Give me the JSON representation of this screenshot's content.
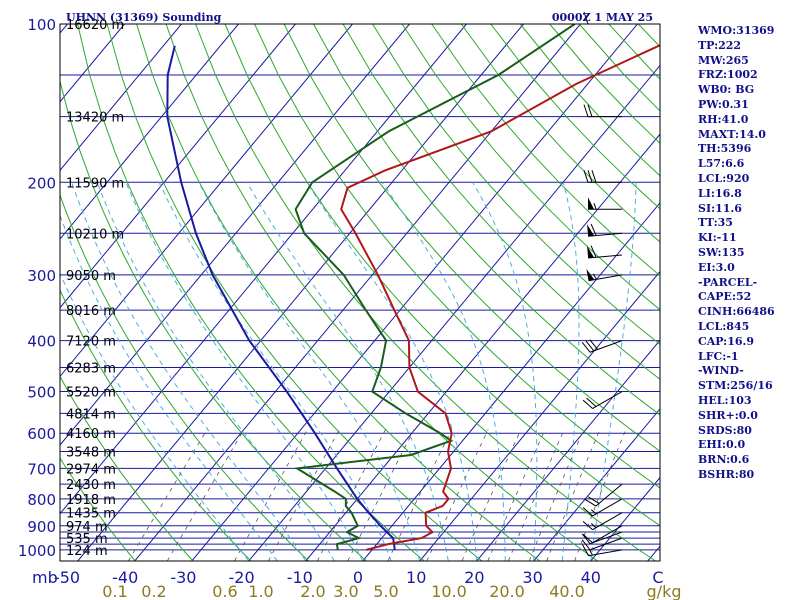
{
  "header": {
    "station": "UHNN (31369) Sounding",
    "time": "0000Z  1 MAY 25"
  },
  "indices": [
    "WMO:31369",
    "TP:222",
    "MW:265",
    "FRZ:1002",
    "WB0: BG",
    "PW:0.31",
    "RH:41.0",
    "MAXT:14.0",
    "TH:5396",
    "L57:6.6",
    "LCL:920",
    "LI:16.8",
    "SI:11.6",
    "TT:35",
    "KI:-11",
    "SW:135",
    "EI:3.0",
    "-PARCEL-",
    "CAPE:52",
    "CINH:66486",
    "LCL:845",
    "CAP:16.9",
    "LFC:-1",
    "-WIND-",
    "STM:256/16",
    "HEL:103",
    "SHR+:0.0",
    "SRDS:80",
    "EHI:0.0",
    "BRN:0.6",
    "BSHR:80"
  ],
  "colors": {
    "frame": "#000000",
    "isobar": "#1a1aa0",
    "isotherm": "#1a1aa0",
    "dry_adiabat": "#2ea82e",
    "moist_adiabat": "#4aaee0",
    "mixing_ratio": "#555555",
    "temperature": "#b01818",
    "dewpoint": "#1a5c1a",
    "parcel": "#1a1aa0"
  },
  "chart_data": {
    "type": "line",
    "diagram": "skew-T log-p",
    "pressure_ticks": [
      100,
      200,
      300,
      400,
      500,
      600,
      700,
      800,
      900,
      1000
    ],
    "pressure_axis_unit": "mb",
    "temperature_ticks": [
      -50,
      -40,
      -30,
      -20,
      -10,
      0,
      10,
      20,
      30,
      40
    ],
    "temperature_axis_end_label": "C",
    "mixing_ratio_ticks": [
      "0.1",
      "0.2",
      "0.6",
      "1.0",
      "2.0",
      "3.0",
      "5.0",
      "10.0",
      "20.0",
      "40.0"
    ],
    "mixing_ratio_unit": "g/kg",
    "isobar_levels": [
      100,
      125,
      150,
      200,
      250,
      300,
      350,
      400,
      450,
      500,
      550,
      600,
      650,
      700,
      750,
      800,
      850,
      900,
      925,
      950,
      975,
      1000
    ],
    "height_labels": [
      {
        "p": 100,
        "label": "16620 m"
      },
      {
        "p": 150,
        "label": "13420 m"
      },
      {
        "p": 200,
        "label": "11590 m"
      },
      {
        "p": 250,
        "label": "10210 m"
      },
      {
        "p": 300,
        "label": "9050 m"
      },
      {
        "p": 350,
        "label": "8016 m"
      },
      {
        "p": 400,
        "label": "7120 m"
      },
      {
        "p": 450,
        "label": "6283 m"
      },
      {
        "p": 500,
        "label": "5520 m"
      },
      {
        "p": 550,
        "label": "4814 m"
      },
      {
        "p": 600,
        "label": "4160 m"
      },
      {
        "p": 650,
        "label": "3548 m"
      },
      {
        "p": 700,
        "label": "2974 m"
      },
      {
        "p": 750,
        "label": "2430 m"
      },
      {
        "p": 800,
        "label": "1918 m"
      },
      {
        "p": 850,
        "label": "1435 m"
      },
      {
        "p": 900,
        "label": "974 m"
      },
      {
        "p": 950,
        "label": "535 m"
      },
      {
        "p": 1000,
        "label": "124 m"
      }
    ],
    "temperature_profile": [
      [
        1000,
        -1
      ],
      [
        975,
        2
      ],
      [
        950,
        7
      ],
      [
        925,
        8
      ],
      [
        900,
        6
      ],
      [
        850,
        4
      ],
      [
        825,
        6
      ],
      [
        800,
        6
      ],
      [
        775,
        4
      ],
      [
        700,
        2
      ],
      [
        650,
        -1
      ],
      [
        600,
        -3
      ],
      [
        550,
        -7
      ],
      [
        500,
        -15
      ],
      [
        450,
        -20
      ],
      [
        400,
        -24
      ],
      [
        350,
        -31
      ],
      [
        300,
        -39
      ],
      [
        250,
        -49
      ],
      [
        225,
        -55
      ],
      [
        205,
        -57
      ],
      [
        190,
        -53
      ],
      [
        160,
        -40
      ],
      [
        130,
        -32
      ],
      [
        100,
        -18
      ]
    ],
    "dewpoint_profile": [
      [
        1000,
        -6
      ],
      [
        975,
        -7
      ],
      [
        950,
        -4
      ],
      [
        925,
        -7
      ],
      [
        900,
        -6
      ],
      [
        850,
        -9
      ],
      [
        825,
        -11
      ],
      [
        800,
        -12
      ],
      [
        775,
        -15
      ],
      [
        700,
        -25
      ],
      [
        660,
        -7
      ],
      [
        620,
        -2
      ],
      [
        600,
        -5
      ],
      [
        550,
        -14
      ],
      [
        500,
        -23
      ],
      [
        450,
        -25
      ],
      [
        400,
        -28
      ],
      [
        350,
        -36
      ],
      [
        300,
        -45
      ],
      [
        250,
        -58
      ],
      [
        225,
        -63
      ],
      [
        200,
        -64
      ],
      [
        160,
        -58
      ],
      [
        125,
        -47
      ],
      [
        100,
        -41
      ]
    ],
    "parcel_profile": [
      [
        1000,
        4
      ],
      [
        950,
        2
      ],
      [
        900,
        -2
      ],
      [
        850,
        -6
      ],
      [
        800,
        -10
      ],
      [
        700,
        -18
      ],
      [
        600,
        -27
      ],
      [
        500,
        -38
      ],
      [
        400,
        -52
      ],
      [
        300,
        -68
      ],
      [
        250,
        -77
      ],
      [
        200,
        -87
      ],
      [
        150,
        -99
      ],
      [
        125,
        -105
      ],
      [
        110,
        -108
      ]
    ],
    "wind_profile": [
      {
        "p": 1000,
        "dir": 260,
        "kt": 15
      },
      {
        "p": 950,
        "dir": 250,
        "kt": 10
      },
      {
        "p": 925,
        "dir": 250,
        "kt": 10
      },
      {
        "p": 900,
        "dir": 240,
        "kt": 10
      },
      {
        "p": 850,
        "dir": 240,
        "kt": 15
      },
      {
        "p": 800,
        "dir": 240,
        "kt": 15
      },
      {
        "p": 750,
        "dir": 230,
        "kt": 20
      },
      {
        "p": 500,
        "dir": 240,
        "kt": 20
      },
      {
        "p": 400,
        "dir": 250,
        "kt": 30
      },
      {
        "p": 300,
        "dir": 260,
        "kt": 55
      },
      {
        "p": 275,
        "dir": 265,
        "kt": 60
      },
      {
        "p": 250,
        "dir": 265,
        "kt": 60
      },
      {
        "p": 225,
        "dir": 270,
        "kt": 55
      },
      {
        "p": 200,
        "dir": 270,
        "kt": 30
      },
      {
        "p": 150,
        "dir": 270,
        "kt": 20
      },
      {
        "p": 100,
        "dir": 270,
        "kt": 10
      }
    ]
  }
}
